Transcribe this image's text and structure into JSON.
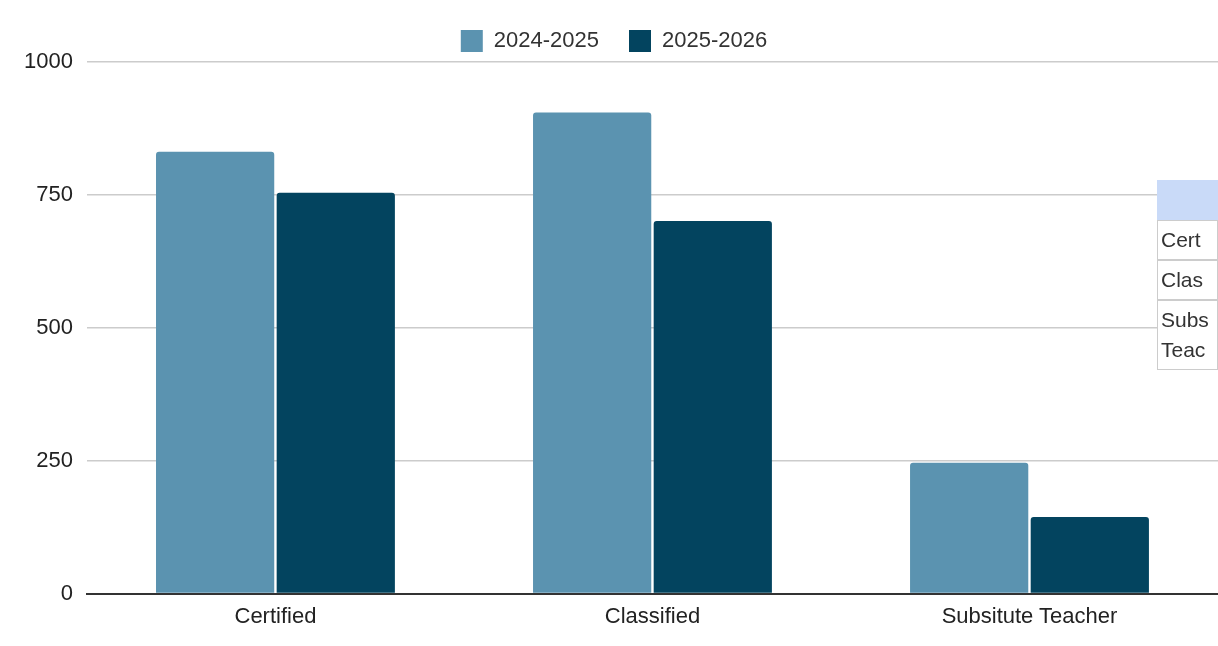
{
  "chart_data": {
    "type": "bar",
    "categories": [
      "Certified",
      "Classified",
      "Subsitute Teacher"
    ],
    "series": [
      {
        "name": "2024-2025",
        "color": "#5b93b0",
        "values": [
          831,
          905,
          246
        ]
      },
      {
        "name": "2025-2026",
        "color": "#03445f",
        "values": [
          754,
          701,
          144
        ]
      }
    ],
    "ylim": [
      0,
      1000
    ],
    "yticks": [
      0,
      250,
      500,
      750,
      1000
    ],
    "grid": "y",
    "legend": "top",
    "annotations": [
      "Cert",
      "Clas",
      "Subs\nTeac"
    ]
  }
}
